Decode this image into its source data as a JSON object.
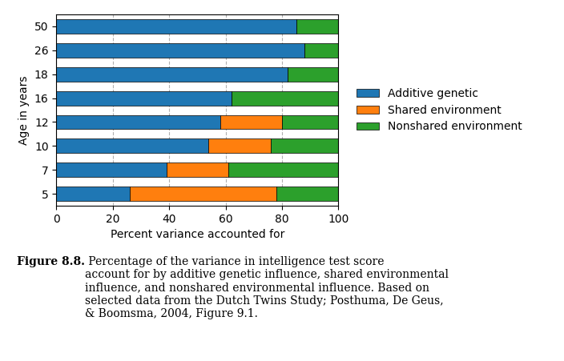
{
  "chart_data": {
    "type": "bar",
    "orientation": "horizontal",
    "stacked": true,
    "categories": [
      "5",
      "7",
      "10",
      "12",
      "16",
      "18",
      "26",
      "50"
    ],
    "series": [
      {
        "name": "Additive genetic",
        "values": [
          26,
          39,
          54,
          58,
          62,
          82,
          88,
          85
        ]
      },
      {
        "name": "Shared environment",
        "values": [
          52,
          22,
          22,
          22,
          0,
          0,
          0,
          0
        ]
      },
      {
        "name": "Nonshared environment",
        "values": [
          22,
          39,
          24,
          20,
          38,
          18,
          12,
          15
        ]
      }
    ],
    "xlabel": "Percent variance accounted for",
    "ylabel": "Age in years",
    "xlim": [
      0,
      100
    ],
    "xticks": [
      0,
      20,
      40,
      60,
      80,
      100
    ],
    "grid": true,
    "annotations": [
      "Figure 8.8.",
      " Percentage of the variance in intelligence test score\naccount for by additive genetic influence, shared environmental\ninfluence, and nonshared environmental influence. Based on\nselected data from the Dutch Twins Study; Posthuma, De Geus,\n& Boomsma, 2004, Figure 9.1."
    ]
  }
}
